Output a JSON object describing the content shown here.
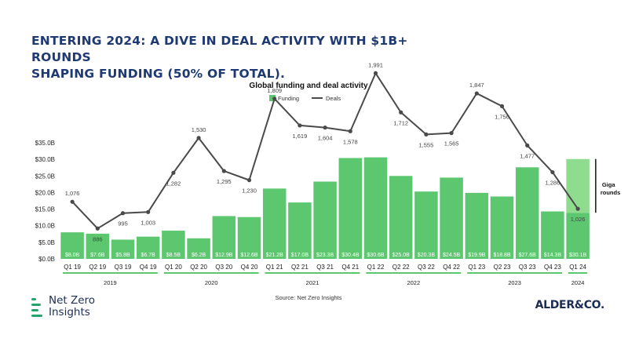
{
  "headline": {
    "line1": "ENTERING 2024: A DIVE IN DEAL ACTIVITY WITH $1B+ ROUNDS",
    "line2": "SHAPING FUNDING (50% OF TOTAL)."
  },
  "brand": {
    "netzero_line1": "Net Zero",
    "netzero_line2": "Insights",
    "alder": "ALDER&CO."
  },
  "colors": {
    "bar": "#5cc76e",
    "giga": "#90dc8f",
    "line": "#4a4a4a",
    "headline": "#1f3a73",
    "year_rule": "#5cc76e"
  },
  "chart_data": {
    "type": "bar+line",
    "title": "Global funding and deal activity",
    "source": "Source: Net Zero Insights",
    "legend": {
      "placement": "top-center",
      "items": [
        "Funding",
        "Deals"
      ]
    },
    "categories": [
      "Q1 19",
      "Q2 19",
      "Q3 19",
      "Q4 19",
      "Q1 20",
      "Q2 20",
      "Q3 20",
      "Q4 20",
      "Q1 21",
      "Q2 21",
      "Q3 21",
      "Q4 21",
      "Q1 22",
      "Q2 22",
      "Q3 22",
      "Q4 22",
      "Q1 23",
      "Q2 23",
      "Q3 23",
      "Q4 23",
      "Q1 24"
    ],
    "years": [
      {
        "label": "2019",
        "from": 0,
        "to": 3
      },
      {
        "label": "2020",
        "from": 4,
        "to": 7
      },
      {
        "label": "2021",
        "from": 8,
        "to": 11
      },
      {
        "label": "2022",
        "from": 12,
        "to": 15
      },
      {
        "label": "2023",
        "from": 16,
        "to": 19
      },
      {
        "label": "2024",
        "from": 20,
        "to": 20
      }
    ],
    "funding": {
      "name": "Funding",
      "values": [
        8.0,
        7.6,
        5.8,
        6.7,
        8.5,
        6.2,
        12.9,
        12.6,
        21.2,
        17.0,
        23.3,
        30.4,
        30.6,
        25.0,
        20.3,
        24.5,
        19.9,
        18.8,
        27.6,
        14.3,
        30.1
      ],
      "labels": [
        "$8.0B",
        "$7.6B",
        "$5.8B",
        "$6.7B",
        "$8.5B",
        "$6.2B",
        "$12.9B",
        "$12.6B",
        "$21.2B",
        "$17.0B",
        "$23.3B",
        "$30.4B",
        "$30.6B",
        "$25.0B",
        "$20.3B",
        "$24.5B",
        "$19.9B",
        "$18.8B",
        "$27.6B",
        "$14.3B",
        "$30.1B"
      ]
    },
    "giga": {
      "index": 20,
      "split_value": 13.9,
      "label_line1": "Giga",
      "label_line2": "rounds"
    },
    "deals": {
      "name": "Deals",
      "values": [
        1076,
        886,
        995,
        1003,
        1282,
        1530,
        1295,
        1230,
        1809,
        1619,
        1604,
        1578,
        1991,
        1712,
        1555,
        1565,
        1847,
        1756,
        1477,
        1286,
        1026
      ],
      "labels": [
        "1,076",
        "886",
        "995",
        "1,003",
        "1,282",
        "1,530",
        "1,295",
        "1,230",
        "1,809",
        "1,619",
        "1,604",
        "1,578",
        "1,991",
        "1,712",
        "1,555",
        "1,565",
        "1,847",
        "1,756",
        "1,477",
        "1,286",
        "1,026"
      ]
    },
    "y_axis": {
      "range": [
        0,
        35
      ],
      "ticks": [
        0,
        5,
        10,
        15,
        20,
        25,
        30,
        35
      ],
      "tick_labels": [
        "$0.0B",
        "$5.0B",
        "$10.0B",
        "$15.0B",
        "$20.0B",
        "$25.0B",
        "$30.0B",
        "$35.0B"
      ]
    },
    "deals_axis_range": [
      0,
      2400
    ],
    "grid": false
  }
}
